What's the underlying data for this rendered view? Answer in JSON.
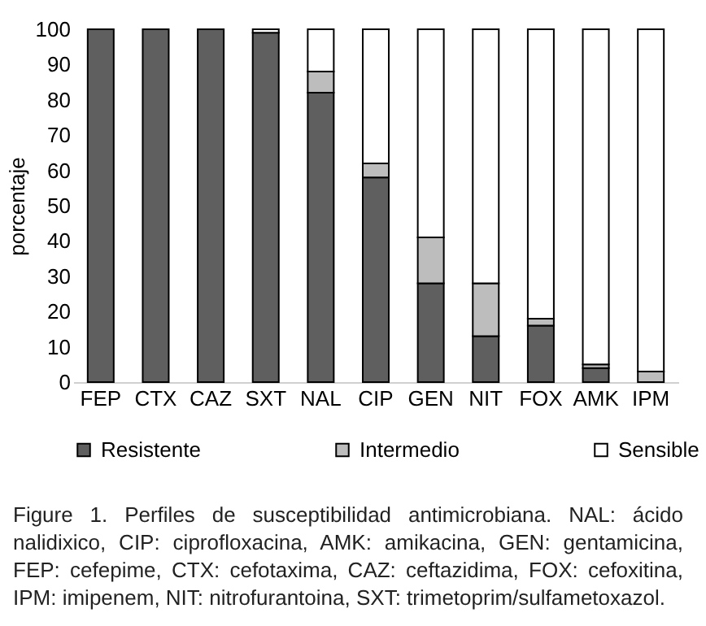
{
  "chart_data": {
    "type": "bar",
    "stacked": true,
    "ylabel": "porcentaje",
    "categories": [
      "FEP",
      "CTX",
      "CAZ",
      "SXT",
      "NAL",
      "CIP",
      "GEN",
      "NIT",
      "FOX",
      "AMK",
      "IPM"
    ],
    "series": [
      {
        "name": "Resistente",
        "color": "#5f5f5f",
        "values": [
          100,
          100,
          100,
          99,
          82,
          58,
          28,
          13,
          16,
          4,
          0
        ]
      },
      {
        "name": "Intermedio",
        "color": "#bdbdbd",
        "values": [
          0,
          0,
          0,
          0,
          6,
          4,
          13,
          15,
          2,
          1,
          3
        ]
      },
      {
        "name": "Sensible",
        "color": "#ffffff",
        "values": [
          0,
          0,
          0,
          1,
          12,
          38,
          59,
          72,
          82,
          95,
          97
        ]
      }
    ],
    "ylim": [
      0,
      100
    ],
    "yticks": [
      0,
      10,
      20,
      30,
      40,
      50,
      60,
      70,
      80,
      90,
      100
    ],
    "grid": false,
    "legend": "bottom",
    "annotations": [
      "Figure 1. Perfiles de susceptibilidad antimicrobiana. NAL: ácido nalidixico, CIP: ciprofloxacina, AMK: amikacina, GEN: gentamicina, FEP: cefepime, CTX: cefotaxima, CAZ: ceftazidima, FOX: cefoxitina, IPM: imipenem, NIT: nitrofurantoina, SXT: trimetoprim/sulfametoxazol."
    ]
  }
}
